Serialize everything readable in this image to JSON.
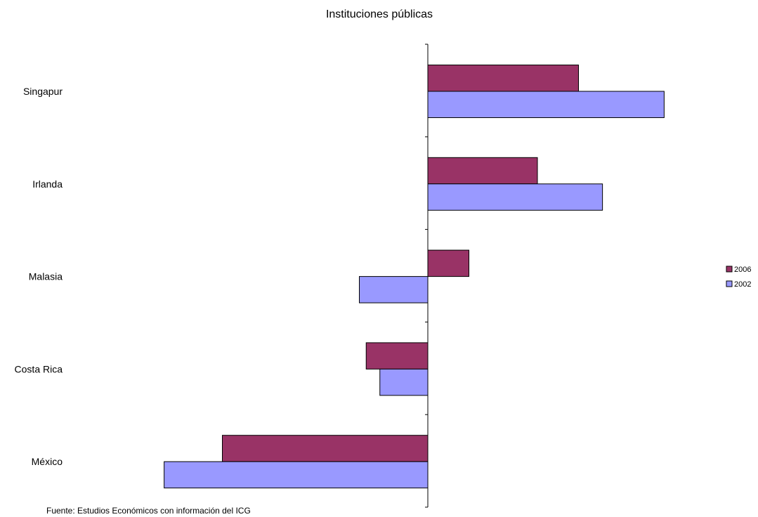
{
  "chart_data": {
    "type": "bar",
    "orientation": "horizontal",
    "title": "Instituciones públicas",
    "source": "Fuente: Estudios Económicos con información del ICG",
    "categories": [
      "Singapur",
      "Irlanda",
      "Malasia",
      "Costa Rica",
      "México"
    ],
    "series": [
      {
        "name": "2006",
        "color": "#993366",
        "values": [
          2.2,
          1.6,
          0.6,
          -0.9,
          -3.0
        ]
      },
      {
        "name": "2002",
        "color": "#9999FF",
        "values": [
          3.45,
          2.55,
          -1.0,
          -0.7,
          -3.85
        ]
      }
    ],
    "xlim": [
      -3.85,
      3.45
    ],
    "grid": false,
    "axis_labels_shown": false,
    "legend_position": "right"
  }
}
